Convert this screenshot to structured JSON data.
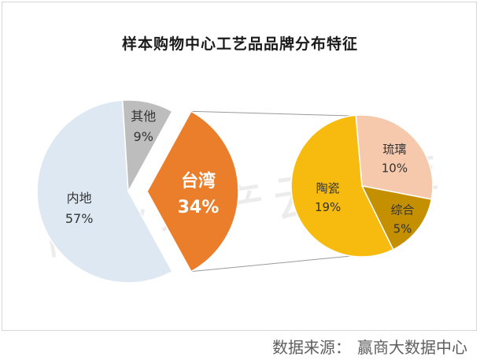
{
  "title": "样本购物中心工艺品品牌分布特征",
  "watermark": "商业地产云智库",
  "source": {
    "label": "数据来源：",
    "name": "赢商大数据中心"
  },
  "chart_data": [
    {
      "type": "pie",
      "slices": [
        {
          "label": "内地",
          "value": 57,
          "display": "57%",
          "color": "#dde8f3"
        },
        {
          "label": "其他",
          "value": 9,
          "display": "9%",
          "color": "#bdbdbd"
        },
        {
          "label": "台湾",
          "value": 34,
          "display": "34%",
          "color": "#ea7e2a",
          "exploded": true
        }
      ]
    },
    {
      "type": "pie",
      "breakdown_of": "台湾",
      "slices": [
        {
          "label": "陶瓷",
          "value": 19,
          "display": "19%",
          "color": "#f7bb10"
        },
        {
          "label": "琉璃",
          "value": 10,
          "display": "10%",
          "color": "#f6c9ad"
        },
        {
          "label": "综合",
          "value": 5,
          "display": "5%",
          "color": "#c49000"
        }
      ]
    }
  ]
}
